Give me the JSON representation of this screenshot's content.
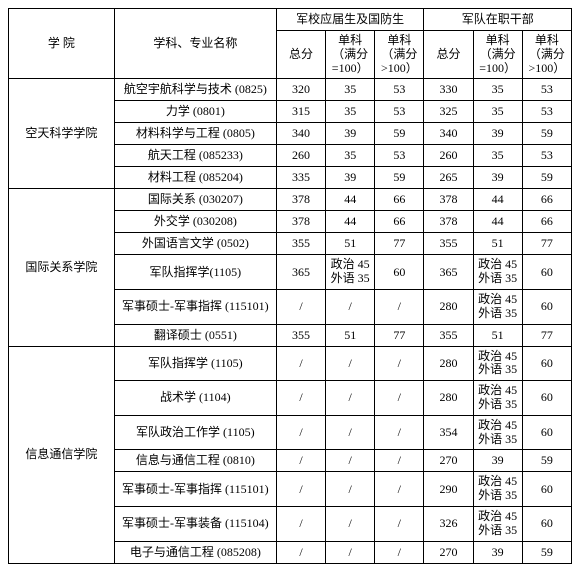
{
  "headers": {
    "institute": "学  院",
    "major": "学科、专业名称",
    "groupA": "军校应届生及国防生",
    "groupB": "军队在职干部",
    "total": "总分",
    "scoreEq": "单科（满分=100）",
    "scoreGt": "单科（满分>100）"
  },
  "institutes": [
    {
      "name": "空天科学学院",
      "rows": [
        {
          "major": "航空宇航科学与技术 (0825)",
          "a_total": "320",
          "a_eq": "35",
          "a_gt": "53",
          "b_total": "330",
          "b_eq": "35",
          "b_gt": "53"
        },
        {
          "major": "力学 (0801)",
          "a_total": "315",
          "a_eq": "35",
          "a_gt": "53",
          "b_total": "325",
          "b_eq": "35",
          "b_gt": "53"
        },
        {
          "major": "材料科学与工程 (0805)",
          "a_total": "340",
          "a_eq": "39",
          "a_gt": "59",
          "b_total": "340",
          "b_eq": "39",
          "b_gt": "59"
        },
        {
          "major": "航天工程 (085233)",
          "a_total": "260",
          "a_eq": "35",
          "a_gt": "53",
          "b_total": "260",
          "b_eq": "35",
          "b_gt": "53"
        },
        {
          "major": "材料工程 (085204)",
          "a_total": "335",
          "a_eq": "39",
          "a_gt": "59",
          "b_total": "265",
          "b_eq": "39",
          "b_gt": "59"
        }
      ]
    },
    {
      "name": "国际关系学院",
      "rows": [
        {
          "major": "国际关系 (030207)",
          "a_total": "378",
          "a_eq": "44",
          "a_gt": "66",
          "b_total": "378",
          "b_eq": "44",
          "b_gt": "66"
        },
        {
          "major": "外交学 (030208)",
          "a_total": "378",
          "a_eq": "44",
          "a_gt": "66",
          "b_total": "378",
          "b_eq": "44",
          "b_gt": "66"
        },
        {
          "major": "外国语言文学 (0502)",
          "a_total": "355",
          "a_eq": "51",
          "a_gt": "77",
          "b_total": "355",
          "b_eq": "51",
          "b_gt": "77"
        },
        {
          "major": "军队指挥学(1105)",
          "a_total": "365",
          "a_eq": "政治 45\n外语 35",
          "a_gt": "60",
          "b_total": "365",
          "b_eq": "政治 45\n外语 35",
          "b_gt": "60"
        },
        {
          "major": "军事硕士-军事指挥 (115101)",
          "a_total": "/",
          "a_eq": "/",
          "a_gt": "/",
          "b_total": "280",
          "b_eq": "政治 45\n外语 35",
          "b_gt": "60"
        },
        {
          "major": "翻译硕士 (0551)",
          "a_total": "355",
          "a_eq": "51",
          "a_gt": "77",
          "b_total": "355",
          "b_eq": "51",
          "b_gt": "77"
        }
      ]
    },
    {
      "name": "信息通信学院",
      "rows": [
        {
          "major": "军队指挥学 (1105)",
          "a_total": "/",
          "a_eq": "/",
          "a_gt": "/",
          "b_total": "280",
          "b_eq": "政治 45\n外语 35",
          "b_gt": "60"
        },
        {
          "major": "战术学 (1104)",
          "a_total": "/",
          "a_eq": "/",
          "a_gt": "/",
          "b_total": "280",
          "b_eq": "政治 45\n外语 35",
          "b_gt": "60"
        },
        {
          "major": "军队政治工作学 (1105)",
          "a_total": "/",
          "a_eq": "/",
          "a_gt": "/",
          "b_total": "354",
          "b_eq": "政治 45\n外语 35",
          "b_gt": "60"
        },
        {
          "major": "信息与通信工程 (0810)",
          "a_total": "/",
          "a_eq": "/",
          "a_gt": "/",
          "b_total": "270",
          "b_eq": "39",
          "b_gt": "59"
        },
        {
          "major": "军事硕士-军事指挥 (115101)",
          "a_total": "/",
          "a_eq": "/",
          "a_gt": "/",
          "b_total": "290",
          "b_eq": "政治 45\n外语 35",
          "b_gt": "60"
        },
        {
          "major": "军事硕士-军事装备 (115104)",
          "a_total": "/",
          "a_eq": "/",
          "a_gt": "/",
          "b_total": "326",
          "b_eq": "政治 45\n外语 35",
          "b_gt": "60"
        },
        {
          "major": "电子与通信工程 (085208)",
          "a_total": "/",
          "a_eq": "/",
          "a_gt": "/",
          "b_total": "270",
          "b_eq": "39",
          "b_gt": "59"
        }
      ]
    }
  ]
}
